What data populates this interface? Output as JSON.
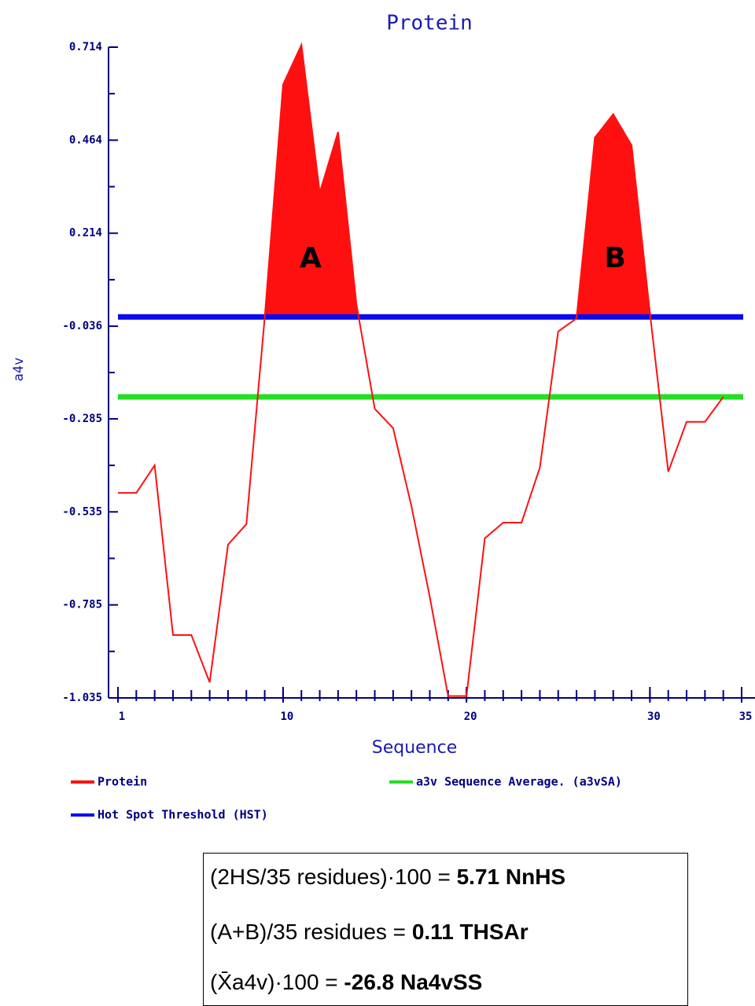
{
  "chart_data": {
    "type": "line",
    "title": "Protein",
    "xlabel": "Sequence",
    "ylabel": "a4v",
    "x": [
      1,
      2,
      3,
      4,
      5,
      6,
      7,
      8,
      9,
      10,
      11,
      12,
      13,
      14,
      15,
      16,
      17,
      18,
      19,
      20,
      21,
      22,
      23,
      24,
      25,
      26,
      27,
      28,
      29,
      30,
      31,
      32,
      33,
      34
    ],
    "series": [
      {
        "name": "Protein",
        "color": "#ff1010",
        "values": [
          -0.484,
          -0.484,
          -0.41,
          -0.866,
          -0.866,
          -0.993,
          -0.623,
          -0.568,
          -0.013,
          0.613,
          0.72,
          0.323,
          0.486,
          0.023,
          -0.258,
          -0.31,
          -0.52,
          -0.764,
          -1.03,
          -1.03,
          -0.606,
          -0.564,
          -0.564,
          -0.416,
          -0.05,
          -0.015,
          0.471,
          0.534,
          0.45,
          0.0,
          -0.427,
          -0.293,
          -0.293,
          -0.226
        ]
      }
    ],
    "hlines": [
      {
        "name": "a3v Sequence Average. (a3vSA)",
        "color": "#22e022",
        "value": -0.226
      },
      {
        "name": "Hot Spot Threshold (HST)",
        "color": "#0a0aee",
        "value": -0.011
      }
    ],
    "annotations": [
      {
        "text": "A",
        "x": 11.5,
        "y": 0.144
      },
      {
        "text": "B",
        "x": 28.1,
        "y": 0.144
      }
    ],
    "xlim": [
      1,
      35
    ],
    "xticks": [
      1,
      10,
      20,
      30,
      35
    ],
    "ylim": [
      -1.035,
      0.714
    ],
    "yticks": [
      0.714,
      0.464,
      0.214,
      -0.036,
      -0.285,
      -0.535,
      -0.785,
      -1.035
    ]
  },
  "formulas": [
    {
      "text": "(2HS/35 residues)·100 = ",
      "result": "5.71 NnHS"
    },
    {
      "text": "(A+B)/35 residues = ",
      "result": "0.11 THSAr"
    },
    {
      "text": "(X̄a4v)·100 = ",
      "result": "-26.8 Na4vSS"
    }
  ]
}
